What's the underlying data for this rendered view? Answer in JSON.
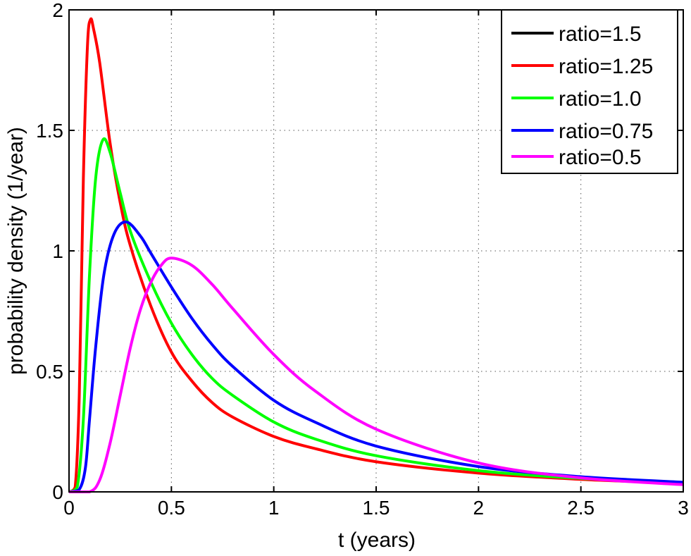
{
  "chart_data": {
    "type": "line",
    "title": "",
    "xlabel": "t (years)",
    "ylabel": "probability density (1/year)",
    "xlim": [
      0,
      3
    ],
    "ylim": [
      0,
      2
    ],
    "xticks": [
      "0",
      "0.5",
      "1",
      "1.5",
      "2",
      "2.5",
      "3"
    ],
    "xtick_values": [
      0,
      0.5,
      1,
      1.5,
      2,
      2.5,
      3
    ],
    "yticks": [
      "0",
      "0.5",
      "1",
      "1.5",
      "2"
    ],
    "ytick_values": [
      0,
      0.5,
      1,
      1.5,
      2
    ],
    "grid": true,
    "legend_position": "top-right",
    "series": [
      {
        "name": "ratio=1.5",
        "color": "#000000",
        "x": [],
        "y": []
      },
      {
        "name": "ratio=1.25",
        "color": "#ff0000",
        "x": [
          0,
          0.03,
          0.05,
          0.07,
          0.09,
          0.105,
          0.12,
          0.15,
          0.2,
          0.25,
          0.3,
          0.4,
          0.5,
          0.6,
          0.7,
          0.8,
          1.0,
          1.2,
          1.5,
          2.0,
          2.5,
          3.0
        ],
        "y": [
          0,
          0.02,
          0.4,
          1.3,
          1.85,
          1.96,
          1.92,
          1.78,
          1.45,
          1.2,
          1.02,
          0.77,
          0.58,
          0.46,
          0.37,
          0.31,
          0.23,
          0.18,
          0.125,
          0.078,
          0.052,
          0.035
        ]
      },
      {
        "name": "ratio=1.0",
        "color": "#00ff00",
        "x": [
          0,
          0.04,
          0.07,
          0.1,
          0.13,
          0.165,
          0.2,
          0.25,
          0.3,
          0.4,
          0.5,
          0.6,
          0.7,
          0.8,
          1.0,
          1.2,
          1.5,
          2.0,
          2.5,
          3.0
        ],
        "y": [
          0,
          0.02,
          0.3,
          0.9,
          1.3,
          1.46,
          1.41,
          1.24,
          1.08,
          0.87,
          0.7,
          0.57,
          0.47,
          0.4,
          0.29,
          0.22,
          0.15,
          0.088,
          0.056,
          0.037
        ]
      },
      {
        "name": "ratio=0.75",
        "color": "#0000ff",
        "x": [
          0,
          0.05,
          0.08,
          0.1,
          0.13,
          0.17,
          0.22,
          0.28,
          0.35,
          0.4,
          0.5,
          0.6,
          0.7,
          0.8,
          1.0,
          1.2,
          1.5,
          2.0,
          2.5,
          3.0
        ],
        "y": [
          0,
          0.01,
          0.1,
          0.3,
          0.6,
          0.9,
          1.07,
          1.12,
          1.06,
          0.99,
          0.85,
          0.72,
          0.61,
          0.52,
          0.38,
          0.29,
          0.19,
          0.105,
          0.063,
          0.04
        ]
      },
      {
        "name": "ratio=0.5",
        "color": "#ff00ff",
        "x": [
          0,
          0.1,
          0.15,
          0.2,
          0.25,
          0.3,
          0.35,
          0.4,
          0.45,
          0.5,
          0.6,
          0.7,
          0.8,
          1.0,
          1.2,
          1.5,
          2.0,
          2.5,
          3.0
        ],
        "y": [
          0,
          0.0,
          0.05,
          0.2,
          0.4,
          0.6,
          0.76,
          0.87,
          0.94,
          0.97,
          0.94,
          0.86,
          0.76,
          0.57,
          0.42,
          0.26,
          0.12,
          0.058,
          0.03
        ]
      }
    ]
  }
}
